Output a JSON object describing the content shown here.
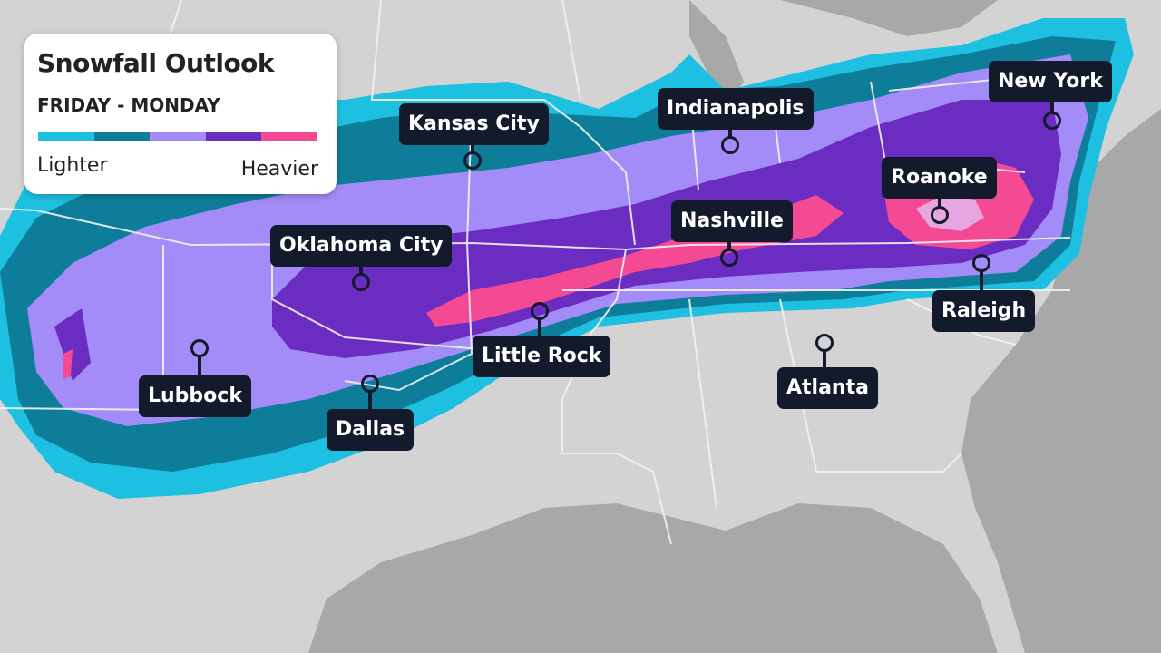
{
  "legend": {
    "title": "Snowfall Outlook",
    "subtitle": "FRIDAY - MONDAY",
    "low_label": "Lighter",
    "high_label": "Heavier",
    "scale_colors": [
      "#1ec0e2",
      "#0e7d99",
      "#a48cf8",
      "#6a2cc1",
      "#f34a93"
    ]
  },
  "map": {
    "land_color": "#d3d3d3",
    "water_color": "#a8a8a8",
    "border_color": "#f2f2f2",
    "extra_heavy_color": "#e7a6df"
  },
  "cities": [
    {
      "name": "Kansas City"
    },
    {
      "name": "Indianapolis"
    },
    {
      "name": "New York"
    },
    {
      "name": "Roanoke"
    },
    {
      "name": "Nashville"
    },
    {
      "name": "Oklahoma City"
    },
    {
      "name": "Little Rock"
    },
    {
      "name": "Raleigh"
    },
    {
      "name": "Atlanta"
    },
    {
      "name": "Lubbock"
    },
    {
      "name": "Dallas"
    }
  ]
}
